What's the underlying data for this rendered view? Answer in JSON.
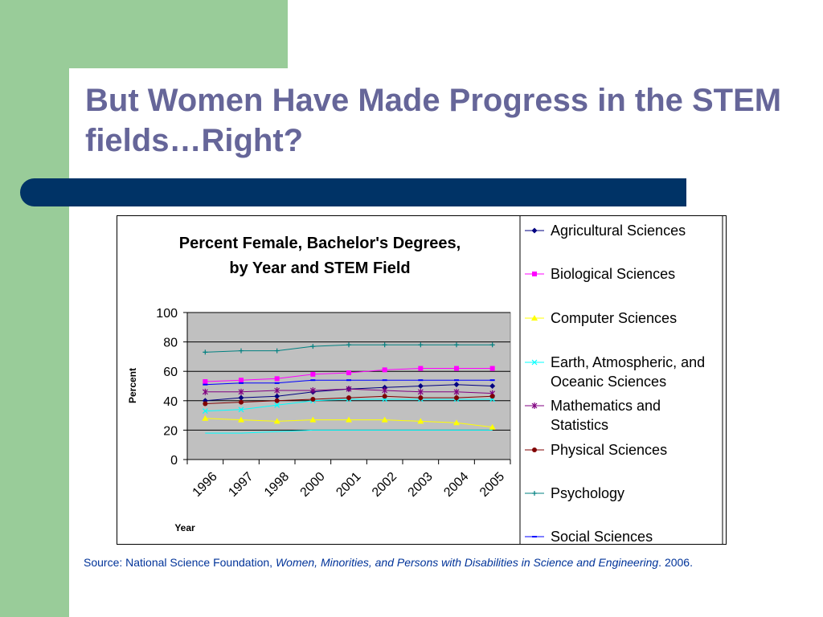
{
  "slide": {
    "title": "But Women Have Made Progress in the STEM fields…Right?",
    "source": {
      "prefix": "Source: National Science Foundation, ",
      "work": "Women, Minorities, and Persons with Disabilities in Science and Engineering",
      "suffix": ". 2006."
    }
  },
  "colors": {
    "green_band": "#99cc99",
    "navy_bar": "#003366",
    "title": "#666699",
    "source": "#003399",
    "plot_background": "#c0c0c0"
  },
  "chart_data": {
    "type": "line",
    "title": "Percent Female, Bachelor's Degrees, by Year and STEM Field",
    "xlabel": "Year",
    "ylabel": "Percent",
    "ylim": [
      0,
      100
    ],
    "yticks": [
      0,
      20,
      40,
      60,
      80,
      100
    ],
    "categories": [
      "1996",
      "1997",
      "1998",
      "2000",
      "2001",
      "2002",
      "2003",
      "2004",
      "2005"
    ],
    "grid": true,
    "legend": "right",
    "series": [
      {
        "name": "Agricultural Sciences",
        "color": "#000080",
        "marker": "diamond",
        "values": [
          40,
          42,
          43,
          46,
          48,
          49,
          50,
          51,
          50
        ]
      },
      {
        "name": "Biological Sciences",
        "color": "#ff00ff",
        "marker": "square",
        "values": [
          53,
          54,
          55,
          58,
          59,
          61,
          62,
          62,
          62
        ]
      },
      {
        "name": "Computer Sciences",
        "color": "#ffff00",
        "marker": "triangle",
        "values": [
          28,
          27,
          26,
          27,
          27,
          27,
          26,
          25,
          22
        ]
      },
      {
        "name": "Earth, Atmospheric, and Oceanic Sciences",
        "color": "#00ffff",
        "marker": "x",
        "values": [
          33,
          34,
          37,
          40,
          41,
          41,
          41,
          41,
          41
        ]
      },
      {
        "name": "Mathematics and Statistics",
        "color": "#800080",
        "marker": "star",
        "values": [
          46,
          46,
          47,
          47,
          48,
          47,
          46,
          46,
          45
        ]
      },
      {
        "name": "Physical Sciences",
        "color": "#800000",
        "marker": "circle",
        "values": [
          38,
          39,
          40,
          41,
          42,
          43,
          42,
          42,
          43
        ]
      },
      {
        "name": "Psychology",
        "color": "#008080",
        "marker": "plus",
        "values": [
          73,
          74,
          74,
          77,
          78,
          78,
          78,
          78,
          78
        ]
      },
      {
        "name": "Social Sciences",
        "color": "#0000ff",
        "marker": "dash",
        "values": [
          51,
          52,
          52,
          54,
          54,
          54,
          54,
          54,
          54
        ]
      },
      {
        "name": "",
        "color": "#00ffff",
        "marker": "none",
        "values": [
          18,
          18,
          19,
          20,
          20,
          20,
          20,
          20,
          20
        ]
      }
    ]
  }
}
